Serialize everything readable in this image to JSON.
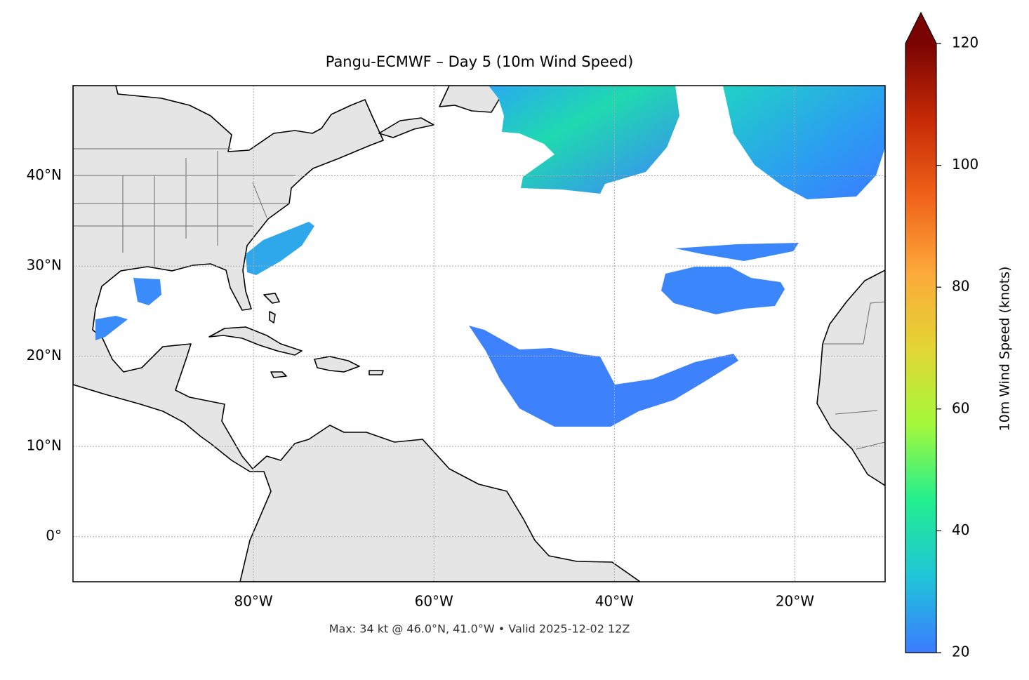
{
  "title": "Pangu-ECMWF – Day 5 (10m Wind Speed)",
  "footnote": "Max: 34 kt @ 46.0°N, 41.0°W • Valid 2025-12-02 12Z",
  "map": {
    "xlim": [
      -100,
      -10
    ],
    "ylim": [
      -5,
      50
    ],
    "xticks": [
      {
        "value": -80,
        "label": "80°W"
      },
      {
        "value": -60,
        "label": "60°W"
      },
      {
        "value": -40,
        "label": "40°W"
      },
      {
        "value": -20,
        "label": "20°W"
      }
    ],
    "yticks": [
      {
        "value": 0,
        "label": "0°"
      },
      {
        "value": 10,
        "label": "10°N"
      },
      {
        "value": 20,
        "label": "20°N"
      },
      {
        "value": 30,
        "label": "30°N"
      },
      {
        "value": 40,
        "label": "40°N"
      }
    ],
    "grid": true
  },
  "colorbar": {
    "label": "10m Wind Speed (knots)",
    "lim": [
      20,
      120
    ],
    "ticks": [
      20,
      40,
      60,
      80,
      100,
      120
    ],
    "colors": [
      "#3b7bff",
      "#1fc5d8",
      "#22ef8f",
      "#a4f83a",
      "#e3d534",
      "#fca93a",
      "#f0611a",
      "#c62a06",
      "#7a0403"
    ]
  }
}
